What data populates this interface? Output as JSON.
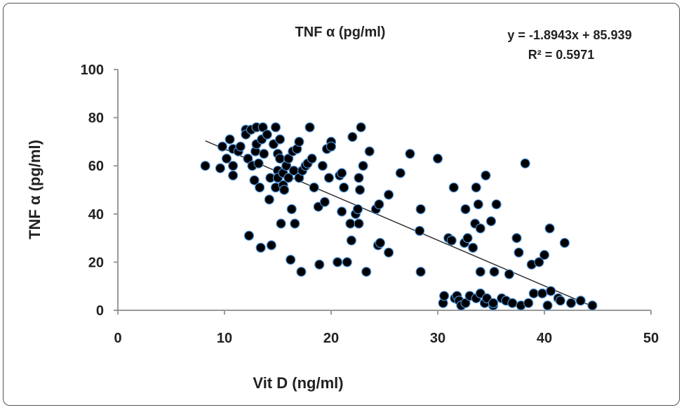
{
  "chart_data": {
    "type": "scatter",
    "title": "TNF α (pg/ml)",
    "xlabel": "Vit D (ng/ml)",
    "ylabel": "TNF α (pg/ml)",
    "xlim": [
      0,
      50
    ],
    "ylim": [
      0,
      100
    ],
    "xticks": [
      0,
      10,
      20,
      30,
      40,
      50
    ],
    "yticks": [
      0,
      20,
      40,
      60,
      80,
      100
    ],
    "grid": false,
    "trendline": {
      "equation": "y = -1.8943x + 85.939",
      "r2": "R² = 0.5971",
      "slope": -1.8943,
      "intercept": 85.939,
      "x_range": [
        8.2,
        44.5
      ]
    },
    "colors": {
      "marker": "#000000",
      "marker_edge": "#4a90d9",
      "line": "#333333"
    },
    "points": [
      [
        8.2,
        60
      ],
      [
        9.6,
        59
      ],
      [
        9.8,
        68
      ],
      [
        10.2,
        63
      ],
      [
        10.5,
        71
      ],
      [
        10.8,
        67
      ],
      [
        10.8,
        56
      ],
      [
        10.8,
        60
      ],
      [
        11.3,
        66
      ],
      [
        11.5,
        68
      ],
      [
        12,
        75
      ],
      [
        12,
        73
      ],
      [
        12.2,
        63
      ],
      [
        12.3,
        31
      ],
      [
        12.5,
        75
      ],
      [
        12.6,
        60
      ],
      [
        12.8,
        54
      ],
      [
        12.9,
        66
      ],
      [
        13,
        76
      ],
      [
        13,
        69
      ],
      [
        13.2,
        61
      ],
      [
        13.3,
        51
      ],
      [
        13.4,
        26
      ],
      [
        13.5,
        71
      ],
      [
        13.6,
        76
      ],
      [
        13.7,
        65
      ],
      [
        14,
        73
      ],
      [
        14.2,
        46
      ],
      [
        14.3,
        55
      ],
      [
        14.4,
        27
      ],
      [
        14.6,
        69
      ],
      [
        14.8,
        76
      ],
      [
        14.8,
        51
      ],
      [
        15,
        58
      ],
      [
        15,
        65
      ],
      [
        15,
        55
      ],
      [
        15.2,
        63
      ],
      [
        15.2,
        71
      ],
      [
        15.3,
        36
      ],
      [
        15.5,
        52
      ],
      [
        15.5,
        57
      ],
      [
        15.6,
        50
      ],
      [
        15.8,
        60
      ],
      [
        16,
        63
      ],
      [
        16,
        55
      ],
      [
        16.2,
        21
      ],
      [
        16.3,
        42
      ],
      [
        16.4,
        66
      ],
      [
        16.5,
        58
      ],
      [
        16.6,
        36
      ],
      [
        16.8,
        67
      ],
      [
        17,
        55
      ],
      [
        17,
        70
      ],
      [
        17.2,
        16
      ],
      [
        17.3,
        58
      ],
      [
        17.6,
        60
      ],
      [
        17.8,
        61
      ],
      [
        18,
        76
      ],
      [
        18.2,
        63
      ],
      [
        18.4,
        51
      ],
      [
        18.8,
        43
      ],
      [
        18.9,
        19
      ],
      [
        19.2,
        60
      ],
      [
        19.4,
        45
      ],
      [
        19.6,
        67
      ],
      [
        19.8,
        55
      ],
      [
        20,
        70
      ],
      [
        20,
        68
      ],
      [
        20.6,
        20
      ],
      [
        20.8,
        56
      ],
      [
        21,
        57
      ],
      [
        21,
        41
      ],
      [
        21.2,
        51
      ],
      [
        21.5,
        20
      ],
      [
        21.8,
        36
      ],
      [
        21.9,
        29
      ],
      [
        22,
        72
      ],
      [
        22.3,
        40
      ],
      [
        22.5,
        42
      ],
      [
        22.6,
        55
      ],
      [
        22.6,
        36
      ],
      [
        22.7,
        50
      ],
      [
        22.8,
        76
      ],
      [
        23,
        60
      ],
      [
        23.3,
        16
      ],
      [
        23.6,
        66
      ],
      [
        24.2,
        42
      ],
      [
        24.4,
        27
      ],
      [
        24.5,
        44
      ],
      [
        24.6,
        28
      ],
      [
        25.4,
        48
      ],
      [
        25.4,
        24
      ],
      [
        26.5,
        57
      ],
      [
        27.4,
        65
      ],
      [
        28.3,
        33
      ],
      [
        28.4,
        42
      ],
      [
        28.4,
        16
      ],
      [
        30,
        63
      ],
      [
        30.5,
        3
      ],
      [
        30.6,
        6
      ],
      [
        31,
        30
      ],
      [
        31.3,
        29
      ],
      [
        31.5,
        51
      ],
      [
        31.6,
        5
      ],
      [
        31.8,
        6
      ],
      [
        32,
        4
      ],
      [
        32.2,
        2
      ],
      [
        32.5,
        28
      ],
      [
        32.6,
        42
      ],
      [
        32.8,
        30
      ],
      [
        32.6,
        3
      ],
      [
        33,
        6
      ],
      [
        33.3,
        26
      ],
      [
        33.5,
        36
      ],
      [
        33.6,
        51
      ],
      [
        33.6,
        5
      ],
      [
        33.8,
        44
      ],
      [
        34,
        34
      ],
      [
        34,
        16
      ],
      [
        34,
        7
      ],
      [
        34.4,
        3
      ],
      [
        34.5,
        56
      ],
      [
        34.6,
        5
      ],
      [
        35,
        37
      ],
      [
        35.2,
        2
      ],
      [
        35.2,
        3
      ],
      [
        35.5,
        44
      ],
      [
        35.3,
        16
      ],
      [
        36,
        5
      ],
      [
        36.4,
        4
      ],
      [
        36.7,
        15
      ],
      [
        37,
        3
      ],
      [
        37.4,
        30
      ],
      [
        37.6,
        24
      ],
      [
        37.8,
        2
      ],
      [
        38.2,
        61
      ],
      [
        38.5,
        3
      ],
      [
        38.8,
        19
      ],
      [
        39,
        7
      ],
      [
        39.5,
        20
      ],
      [
        39.8,
        7
      ],
      [
        40,
        23
      ],
      [
        40.3,
        2
      ],
      [
        40.5,
        34
      ],
      [
        40.6,
        8
      ],
      [
        41.3,
        5
      ],
      [
        41.5,
        4
      ],
      [
        41.9,
        28
      ],
      [
        42.5,
        3
      ],
      [
        43.4,
        4
      ],
      [
        44.5,
        2
      ]
    ]
  }
}
